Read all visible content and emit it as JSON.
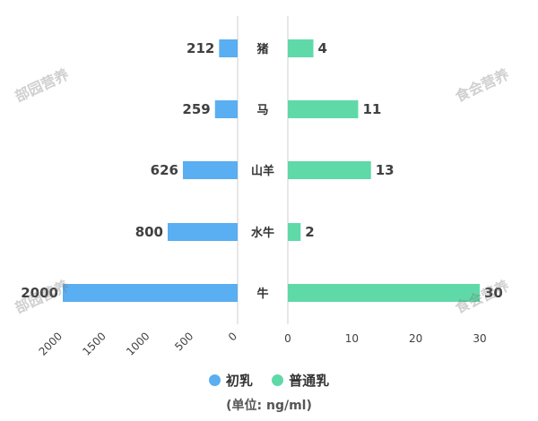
{
  "chart_data": {
    "type": "bar",
    "categories": [
      "猪",
      "马",
      "山羊",
      "水牛",
      "牛"
    ],
    "series": [
      {
        "name": "初乳",
        "values": [
          212,
          259,
          626,
          800,
          2000
        ],
        "labels": [
          "212",
          "259",
          "626",
          "800",
          "2000"
        ],
        "color": "#5aaef2",
        "xlim": [
          0,
          2000
        ],
        "xticks": [
          "2000",
          "1500",
          "1000",
          "500",
          "0"
        ],
        "direction": "left"
      },
      {
        "name": "普通乳",
        "values": [
          4,
          11,
          13,
          2,
          30
        ],
        "labels": [
          "4",
          "11",
          "13",
          "2",
          "30"
        ],
        "color": "#5fd9a8",
        "xlim": [
          0,
          30
        ],
        "xticks": [
          "0",
          "10",
          "20",
          "30"
        ],
        "direction": "right"
      }
    ],
    "title": "",
    "xlabel": "",
    "ylabel": "",
    "unit": "(单位:  ng/ml)",
    "grid": false,
    "legend_position": "bottom"
  },
  "watermarks": [
    "部园营养",
    "食会营养",
    "部园营养",
    "食会营养"
  ]
}
